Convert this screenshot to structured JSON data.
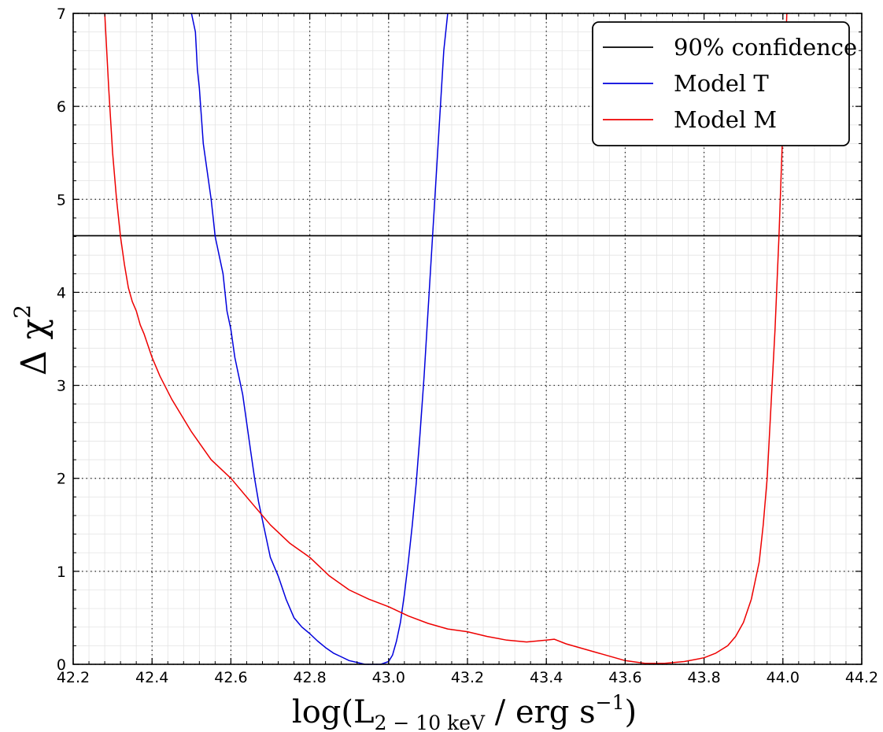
{
  "chart_data": {
    "type": "line",
    "xlabel": "log(L2−10 keV / erg s−1)",
    "xlabel_parts": {
      "pre": "log(L",
      "sub": "2 − 10 keV",
      "mid": " / erg s",
      "sup": "−1",
      "post": ")"
    },
    "ylabel": "Δχ2",
    "ylabel_parts": {
      "base": "Δ χ",
      "sup": "2"
    },
    "xlim": [
      42.2,
      44.2
    ],
    "ylim": [
      0,
      7
    ],
    "xticks": [
      42.2,
      42.4,
      42.6,
      42.8,
      43.0,
      43.2,
      43.4,
      43.6,
      43.8,
      44.0,
      44.2
    ],
    "xtick_labels": [
      "42.2",
      "42.4",
      "42.6",
      "42.8",
      "43.0",
      "43.2",
      "43.4",
      "43.6",
      "43.8",
      "44.0",
      "44.2"
    ],
    "yticks": [
      0,
      1,
      2,
      3,
      4,
      5,
      6,
      7
    ],
    "ytick_labels": [
      "0",
      "1",
      "2",
      "3",
      "4",
      "5",
      "6",
      "7"
    ],
    "grid": true,
    "legend_position": "top-right",
    "series": [
      {
        "name": "90% confidence",
        "color": "#000000",
        "x": [
          42.2,
          44.2
        ],
        "y": [
          4.61,
          4.61
        ]
      },
      {
        "name": "Model T",
        "color": "#0000dd",
        "x": [
          42.5,
          42.51,
          42.515,
          42.52,
          42.53,
          42.54,
          42.55,
          42.555,
          42.56,
          42.57,
          42.58,
          42.59,
          42.6,
          42.61,
          42.62,
          42.63,
          42.64,
          42.65,
          42.66,
          42.67,
          42.68,
          42.69,
          42.7,
          42.72,
          42.74,
          42.76,
          42.78,
          42.8,
          42.82,
          42.84,
          42.86,
          42.88,
          42.9,
          42.92,
          42.94,
          42.96,
          42.98,
          43.0,
          43.01,
          43.02,
          43.03,
          43.04,
          43.05,
          43.06,
          43.07,
          43.08,
          43.09,
          43.1,
          43.11,
          43.12,
          43.13,
          43.14,
          43.15
        ],
        "y": [
          7.0,
          6.8,
          6.4,
          6.2,
          5.6,
          5.3,
          5.0,
          4.8,
          4.6,
          4.4,
          4.2,
          3.8,
          3.6,
          3.3,
          3.1,
          2.9,
          2.6,
          2.3,
          2.0,
          1.75,
          1.55,
          1.35,
          1.15,
          0.95,
          0.7,
          0.5,
          0.4,
          0.33,
          0.25,
          0.18,
          0.12,
          0.08,
          0.04,
          0.02,
          0.0,
          0.0,
          0.0,
          0.03,
          0.1,
          0.25,
          0.45,
          0.75,
          1.1,
          1.5,
          1.95,
          2.5,
          3.1,
          3.8,
          4.5,
          5.2,
          5.9,
          6.6,
          7.0
        ]
      },
      {
        "name": "Model M",
        "color": "#ee0000",
        "x": [
          42.28,
          42.29,
          42.3,
          42.31,
          42.32,
          42.33,
          42.34,
          42.35,
          42.36,
          42.37,
          42.38,
          42.4,
          42.42,
          42.45,
          42.5,
          42.55,
          42.6,
          42.65,
          42.7,
          42.75,
          42.8,
          42.85,
          42.9,
          42.95,
          43.0,
          43.05,
          43.1,
          43.15,
          43.2,
          43.25,
          43.3,
          43.35,
          43.4,
          43.42,
          43.45,
          43.5,
          43.55,
          43.6,
          43.65,
          43.7,
          43.75,
          43.8,
          43.83,
          43.86,
          43.88,
          43.9,
          43.92,
          43.94,
          43.95,
          43.96,
          43.97,
          43.98,
          43.99,
          44.0,
          44.01
        ],
        "y": [
          7.0,
          6.2,
          5.5,
          5.0,
          4.6,
          4.3,
          4.05,
          3.9,
          3.8,
          3.65,
          3.55,
          3.3,
          3.1,
          2.85,
          2.5,
          2.2,
          2.0,
          1.75,
          1.5,
          1.3,
          1.15,
          0.95,
          0.8,
          0.7,
          0.62,
          0.52,
          0.44,
          0.38,
          0.35,
          0.3,
          0.26,
          0.24,
          0.26,
          0.27,
          0.22,
          0.16,
          0.1,
          0.04,
          0.01,
          0.01,
          0.03,
          0.07,
          0.12,
          0.2,
          0.3,
          0.45,
          0.7,
          1.1,
          1.5,
          2.0,
          2.8,
          3.6,
          4.6,
          5.8,
          7.0
        ]
      }
    ]
  }
}
